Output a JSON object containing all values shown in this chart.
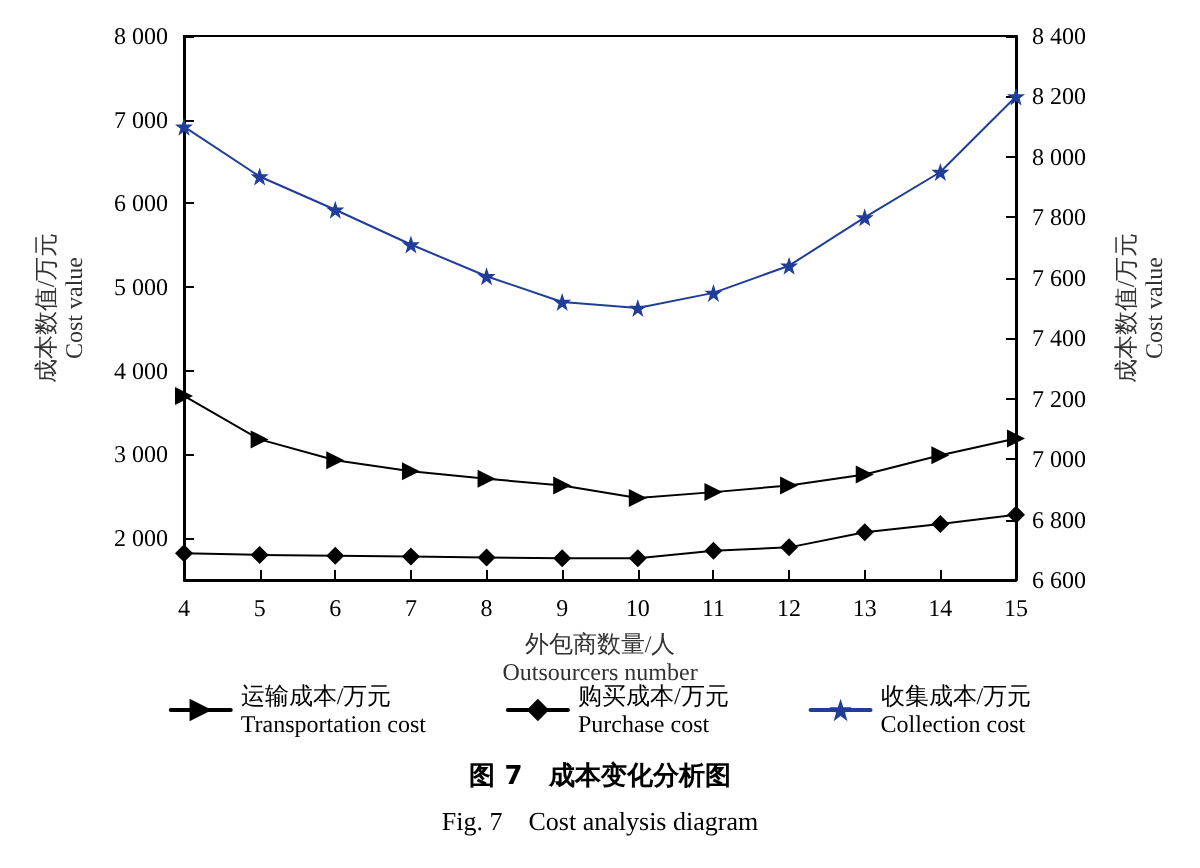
{
  "chart_data": {
    "type": "line",
    "title": "图 7　成本变化分析图",
    "subtitle": "Fig. 7　Cost analysis diagram",
    "xlabel": "外包商数量/人\nOutsourcers number",
    "ylabel": "成本数值/万元\nCost value",
    "y2label": "成本数值/万元\nCost value",
    "x": [
      4,
      5,
      6,
      7,
      8,
      9,
      10,
      11,
      12,
      13,
      14,
      15
    ],
    "xlim": [
      4,
      15
    ],
    "xticks": [
      4,
      5,
      6,
      7,
      8,
      9,
      10,
      11,
      12,
      13,
      14,
      15
    ],
    "ylim": [
      1500,
      8000
    ],
    "yticks": [
      2000,
      3000,
      4000,
      5000,
      6000,
      7000,
      8000
    ],
    "y2lim": [
      6600,
      8400
    ],
    "y2ticks": [
      6600,
      6800,
      7000,
      7200,
      7400,
      7600,
      7800,
      8000,
      8200,
      8400
    ],
    "grid": false,
    "legend": "bottom",
    "line_style": "solid",
    "series": [
      {
        "name": "运输成本/万元\nTransportation cost",
        "color": "#000000",
        "marker": "triangle",
        "values": [
          3700,
          3180,
          2930,
          2800,
          2710,
          2630,
          2480,
          2550,
          2630,
          2760,
          2990,
          3190
        ]
      },
      {
        "name": "购买成本/万元\nPurchase cost",
        "color": "#000000",
        "marker": "diamond",
        "values": [
          1820,
          1800,
          1790,
          1780,
          1770,
          1760,
          1760,
          1850,
          1890,
          2070,
          2170,
          2280
        ]
      },
      {
        "name": "收集成本/万元\nCollection cost",
        "color": "#1f3d99",
        "marker": "star",
        "axis": "y2",
        "values": [
          8100,
          7935,
          7825,
          7710,
          7605,
          7520,
          7500,
          7550,
          7640,
          7800,
          7950,
          8200
        ]
      }
    ]
  }
}
